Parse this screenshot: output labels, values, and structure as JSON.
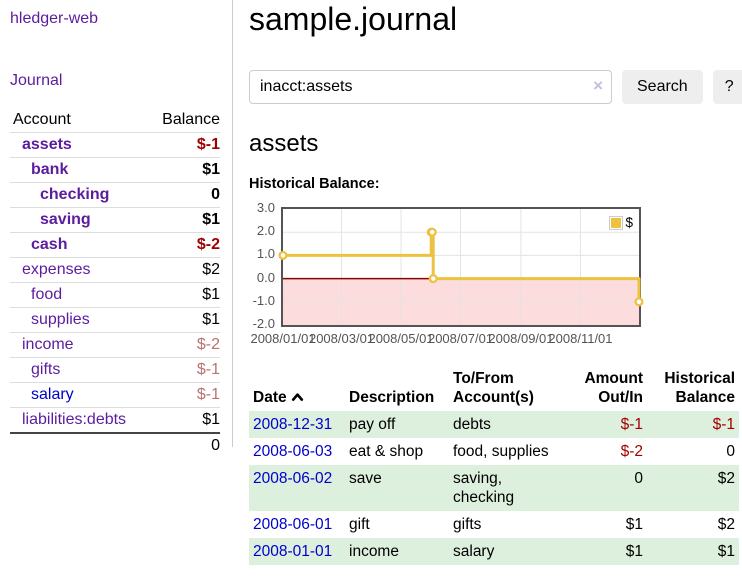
{
  "sidebar": {
    "app_title": "hledger-web",
    "nav": {
      "journal": "Journal"
    },
    "accounts": {
      "header": {
        "account": "Account",
        "balance": "Balance"
      },
      "rows": [
        {
          "name": "assets",
          "depth": 1,
          "bold": true,
          "link_color": "purple",
          "balance": "$-1"
        },
        {
          "name": "bank",
          "depth": 2,
          "bold": true,
          "link_color": "purple",
          "balance": "$1"
        },
        {
          "name": "checking",
          "depth": 3,
          "bold": true,
          "link_color": "purple",
          "balance": "0"
        },
        {
          "name": "saving",
          "depth": 3,
          "bold": true,
          "link_color": "purple",
          "balance": "$1"
        },
        {
          "name": "cash",
          "depth": 2,
          "bold": true,
          "link_color": "purple",
          "balance": "$-2"
        },
        {
          "name": "expenses",
          "depth": 1,
          "bold": false,
          "link_color": "purple",
          "balance": "$2"
        },
        {
          "name": "food",
          "depth": 2,
          "bold": false,
          "link_color": "purple",
          "balance": "$1"
        },
        {
          "name": "supplies",
          "depth": 2,
          "bold": false,
          "link_color": "purple",
          "balance": "$1"
        },
        {
          "name": "income",
          "depth": 1,
          "bold": false,
          "link_color": "purple",
          "balance": "$-2"
        },
        {
          "name": "gifts",
          "depth": 2,
          "bold": false,
          "link_color": "purple",
          "balance": "$-1"
        },
        {
          "name": "salary",
          "depth": 2,
          "bold": false,
          "link_color": "blue",
          "balance": "$-1"
        },
        {
          "name": "liabilities:debts",
          "depth": 1,
          "bold": false,
          "link_color": "purple",
          "balance": "$1"
        }
      ],
      "total": "0"
    }
  },
  "main": {
    "title": "sample.journal",
    "search": {
      "value": "inacct:assets",
      "clear_icon": "×",
      "button": "Search",
      "help_button": "?"
    },
    "account_heading": "assets",
    "chart_label": "Historical Balance:",
    "table": {
      "headers": {
        "date": "Date",
        "description": "Description",
        "accounts": "To/From Account(s)",
        "amount": "Amount Out/In",
        "balance": "Historical Balance"
      },
      "sort_icon": "chevron-up",
      "rows": [
        {
          "date": "2008-12-31",
          "description": "pay off",
          "accounts": "debts",
          "amount": "$-1",
          "balance": "$-1"
        },
        {
          "date": "2008-06-03",
          "description": "eat & shop",
          "accounts": "food, supplies",
          "amount": "$-2",
          "balance": "0"
        },
        {
          "date": "2008-06-02",
          "description": "save",
          "accounts": "saving, checking",
          "amount": "0",
          "balance": "$2"
        },
        {
          "date": "2008-06-01",
          "description": "gift",
          "accounts": "gifts",
          "amount": "$1",
          "balance": "$2"
        },
        {
          "date": "2008-01-01",
          "description": "income",
          "accounts": "salary",
          "amount": "$1",
          "balance": "$1"
        }
      ]
    }
  },
  "chart_data": {
    "type": "line",
    "title": "Historical Balance",
    "step": true,
    "series": [
      {
        "name": "$",
        "color": "#edc240",
        "points": [
          [
            "2008/01/01",
            1
          ],
          [
            "2008/06/01",
            2
          ],
          [
            "2008/06/02",
            2
          ],
          [
            "2008/06/03",
            0
          ],
          [
            "2008/12/31",
            -1
          ]
        ]
      }
    ],
    "x_ticks": [
      "2008/01/01",
      "2008/03/01",
      "2008/05/01",
      "2008/07/01",
      "2008/09/01",
      "2008/11/01"
    ],
    "y_ticks": [
      3.0,
      2.0,
      1.0,
      0.0,
      -1.0,
      -2.0
    ],
    "xlim": [
      "2008/01/01",
      "2008/12/31"
    ],
    "ylim": [
      -2,
      3
    ],
    "grid": true,
    "legend": {
      "label": "$",
      "position": "top-right"
    },
    "negative_region_color": "#fcdcdc",
    "zero_line_color": "#8b0000",
    "grid_color": "#e3e3e3",
    "border_color": "#545454"
  },
  "colors": {
    "link_purple": "#5b1c9e",
    "link_blue": "#0000cc",
    "negative_strong": "#9e0000",
    "negative_soft": "#b87272",
    "row_shade_green": "#ddefdd",
    "series_gold": "#edc240"
  }
}
